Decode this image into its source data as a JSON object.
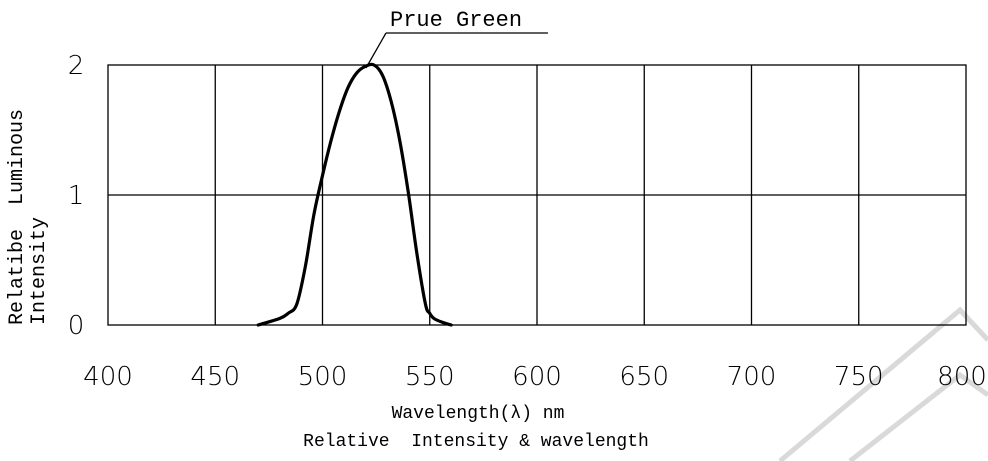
{
  "chart_data": {
    "type": "line",
    "title": "Relative  Intensity & wavelength",
    "xlabel": "Wavelength(λ) nm",
    "ylabel_line1": "Relatibe  Luminous",
    "ylabel_line2": "Intensity",
    "xlim": [
      400,
      800
    ],
    "ylim": [
      0,
      2
    ],
    "x_ticks": [
      "400",
      "450",
      "500",
      "550",
      "600",
      "650",
      "700",
      "750",
      "800"
    ],
    "y_ticks": [
      "0",
      "1",
      "2"
    ],
    "grid": true,
    "series": [
      {
        "name": "Prue Green",
        "x": [
          470,
          480,
          484,
          488,
          492,
          496,
          500,
          504,
          508,
          512,
          516,
          520,
          524,
          528,
          532,
          536,
          540,
          544,
          548,
          550,
          552,
          556,
          560
        ],
        "y": [
          0.0,
          0.05,
          0.09,
          0.16,
          0.45,
          0.85,
          1.15,
          1.42,
          1.65,
          1.83,
          1.94,
          1.99,
          2.0,
          1.92,
          1.72,
          1.42,
          1.02,
          0.55,
          0.16,
          0.09,
          0.05,
          0.02,
          0.0
        ]
      }
    ],
    "annotation": "Prue Green"
  }
}
